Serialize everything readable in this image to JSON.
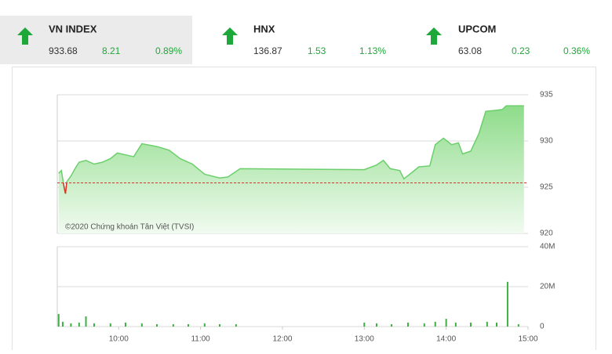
{
  "indices": [
    {
      "name": "VN INDEX",
      "value": "933.68",
      "change": "8.21",
      "pct": "0.89%"
    },
    {
      "name": "HNX",
      "value": "136.87",
      "change": "1.53",
      "pct": "1.13%"
    },
    {
      "name": "UPCOM",
      "value": "63.08",
      "change": "0.23",
      "pct": "0.36%"
    }
  ],
  "chart_data": [
    {
      "type": "area",
      "annotation": "©2020 Chứng khoán Tân Việt (TVSI)",
      "color": "#6ccf6c",
      "below_color": "#d9342b",
      "reference": 925.47,
      "x": [
        556,
        558,
        560,
        561,
        562,
        565,
        568,
        571,
        576,
        582,
        588,
        594,
        599,
        605,
        611,
        617,
        628,
        637,
        645,
        654,
        663,
        674,
        680,
        689,
        780,
        789,
        794,
        799,
        806,
        809,
        815,
        820,
        828,
        832,
        838,
        844,
        849,
        852,
        858,
        864,
        869,
        881,
        884,
        897
      ],
      "values": [
        926.5,
        926.8,
        925.0,
        924.3,
        925.6,
        926.2,
        927.0,
        927.7,
        927.9,
        927.5,
        927.7,
        928.1,
        928.7,
        928.5,
        928.3,
        929.7,
        929.4,
        929.0,
        928.1,
        927.5,
        926.4,
        926.0,
        926.1,
        927.0,
        926.9,
        927.4,
        927.9,
        927.0,
        926.8,
        925.9,
        926.6,
        927.2,
        927.3,
        929.6,
        930.3,
        929.6,
        929.8,
        928.6,
        928.9,
        930.8,
        933.2,
        933.4,
        933.8,
        933.8
      ],
      "xlim": [
        555,
        900
      ],
      "ylim": [
        920,
        935
      ],
      "yticks": [
        920,
        925,
        930,
        935
      ],
      "grid": true
    },
    {
      "type": "bar",
      "color": "#3cb043",
      "x": [
        556,
        559,
        565,
        571,
        576,
        582,
        594,
        605,
        617,
        628,
        640,
        651,
        663,
        674,
        686,
        780,
        789,
        800,
        812,
        824,
        832,
        840,
        847,
        858,
        870,
        877,
        885,
        893
      ],
      "values": [
        6.3,
        2.4,
        1.6,
        2.0,
        5.1,
        1.6,
        1.6,
        2.0,
        1.6,
        1.2,
        1.2,
        1.2,
        1.6,
        1.2,
        1.2,
        2.0,
        1.6,
        1.2,
        2.0,
        1.6,
        2.4,
        3.9,
        2.0,
        2.0,
        2.4,
        2.0,
        22.4,
        1.2
      ],
      "xlim": [
        555,
        900
      ],
      "xticks": [
        {
          "value": 600,
          "label": "10:00"
        },
        {
          "value": 660,
          "label": "11:00"
        },
        {
          "value": 720,
          "label": "12:00"
        },
        {
          "value": 780,
          "label": "13:00"
        },
        {
          "value": 840,
          "label": "14:00"
        },
        {
          "value": 900,
          "label": "15:00"
        }
      ],
      "ylim": [
        0,
        40
      ],
      "yticks": [
        0,
        {
          "value": 20,
          "label": "20M"
        },
        {
          "value": 40,
          "label": "40M"
        }
      ],
      "grid": true
    }
  ]
}
